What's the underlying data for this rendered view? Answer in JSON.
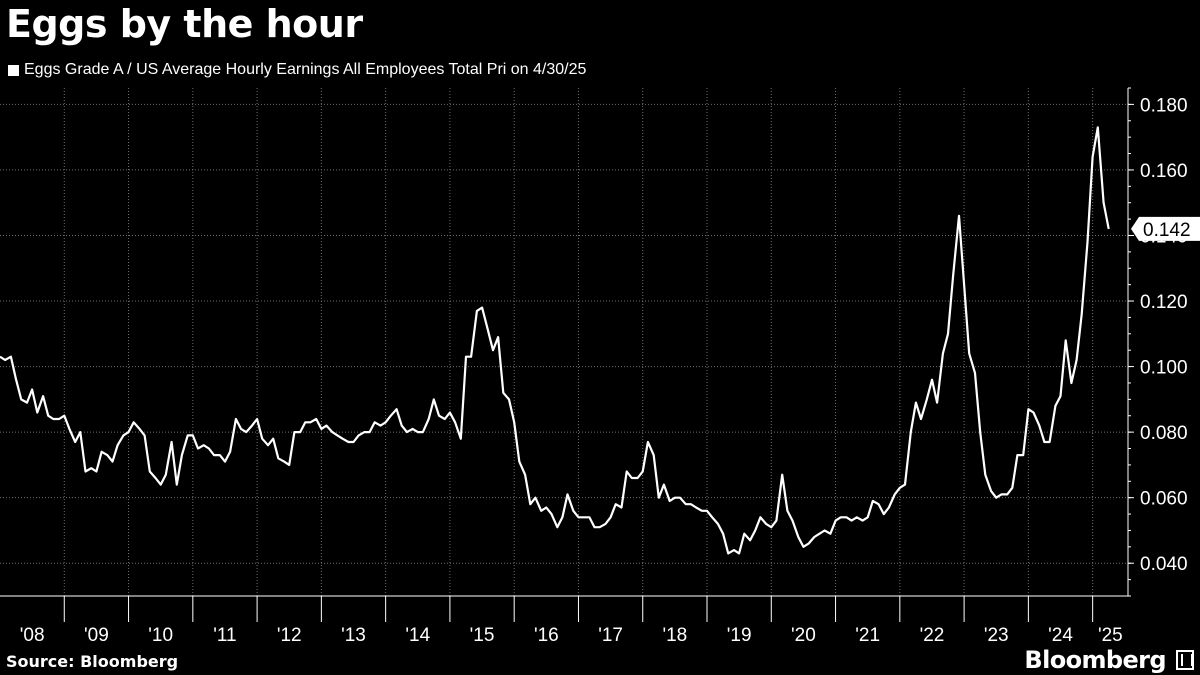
{
  "title": "Eggs by the hour",
  "legend": {
    "label": "Eggs Grade A / US Average Hourly Earnings All Employees Total Pri on 4/30/25"
  },
  "source": "Source: Bloomberg",
  "brand": "Bloomberg",
  "colors": {
    "background": "#000000",
    "line": "#ffffff",
    "grid": "#6e6e6e"
  },
  "chart_data": {
    "type": "line",
    "title": "Eggs by the hour",
    "xlabel": "",
    "ylabel": "",
    "ylim": [
      0.03,
      0.185
    ],
    "xlim": [
      2008.0,
      2025.55
    ],
    "y_ticks": [
      0.04,
      0.06,
      0.08,
      0.1,
      0.12,
      0.14,
      0.16,
      0.18
    ],
    "y_tick_labels": [
      "0.040",
      "0.060",
      "0.080",
      "0.100",
      "0.120",
      "0.140",
      "0.160",
      "0.180"
    ],
    "x_tick_labels": [
      "'08",
      "'09",
      "'10",
      "'11",
      "'12",
      "'13",
      "'14",
      "'15",
      "'16",
      "'17",
      "'18",
      "'19",
      "'20",
      "'21",
      "'22",
      "'23",
      "'24",
      "'25"
    ],
    "last_value_label": "0.142",
    "grid": true,
    "legend_position": "top-left",
    "series": [
      {
        "name": "Eggs Grade A / US Average Hourly Earnings All Employees Total Pri",
        "x": [
          2008.0,
          2008.08,
          2008.17,
          2008.25,
          2008.33,
          2008.42,
          2008.5,
          2008.58,
          2008.67,
          2008.75,
          2008.83,
          2008.92,
          2009.0,
          2009.08,
          2009.17,
          2009.25,
          2009.33,
          2009.42,
          2009.5,
          2009.58,
          2009.67,
          2009.75,
          2009.83,
          2009.92,
          2010.0,
          2010.08,
          2010.17,
          2010.25,
          2010.33,
          2010.42,
          2010.5,
          2010.58,
          2010.67,
          2010.75,
          2010.83,
          2010.92,
          2011.0,
          2011.08,
          2011.17,
          2011.25,
          2011.33,
          2011.42,
          2011.5,
          2011.58,
          2011.67,
          2011.75,
          2011.83,
          2011.92,
          2012.0,
          2012.08,
          2012.17,
          2012.25,
          2012.33,
          2012.42,
          2012.5,
          2012.58,
          2012.67,
          2012.75,
          2012.83,
          2012.92,
          2013.0,
          2013.08,
          2013.17,
          2013.25,
          2013.33,
          2013.42,
          2013.5,
          2013.58,
          2013.67,
          2013.75,
          2013.83,
          2013.92,
          2014.0,
          2014.08,
          2014.17,
          2014.25,
          2014.33,
          2014.42,
          2014.5,
          2014.58,
          2014.67,
          2014.75,
          2014.83,
          2014.92,
          2015.0,
          2015.08,
          2015.17,
          2015.25,
          2015.33,
          2015.42,
          2015.5,
          2015.58,
          2015.67,
          2015.75,
          2015.83,
          2015.92,
          2016.0,
          2016.08,
          2016.17,
          2016.25,
          2016.33,
          2016.42,
          2016.5,
          2016.58,
          2016.67,
          2016.75,
          2016.83,
          2016.92,
          2017.0,
          2017.08,
          2017.17,
          2017.25,
          2017.33,
          2017.42,
          2017.5,
          2017.58,
          2017.67,
          2017.75,
          2017.83,
          2017.92,
          2018.0,
          2018.08,
          2018.17,
          2018.25,
          2018.33,
          2018.42,
          2018.5,
          2018.58,
          2018.67,
          2018.75,
          2018.83,
          2018.92,
          2019.0,
          2019.08,
          2019.17,
          2019.25,
          2019.33,
          2019.42,
          2019.5,
          2019.58,
          2019.67,
          2019.75,
          2019.83,
          2019.92,
          2020.0,
          2020.08,
          2020.17,
          2020.25,
          2020.33,
          2020.42,
          2020.5,
          2020.58,
          2020.67,
          2020.75,
          2020.83,
          2020.92,
          2021.0,
          2021.08,
          2021.17,
          2021.25,
          2021.33,
          2021.42,
          2021.5,
          2021.58,
          2021.67,
          2021.75,
          2021.83,
          2021.92,
          2022.0,
          2022.08,
          2022.17,
          2022.25,
          2022.33,
          2022.42,
          2022.5,
          2022.58,
          2022.67,
          2022.75,
          2022.83,
          2022.92,
          2023.0,
          2023.08,
          2023.17,
          2023.25,
          2023.33,
          2023.42,
          2023.5,
          2023.58,
          2023.67,
          2023.75,
          2023.83,
          2023.92,
          2024.0,
          2024.08,
          2024.17,
          2024.25,
          2024.33,
          2024.42,
          2024.5,
          2024.58,
          2024.67,
          2024.75,
          2024.83,
          2024.92,
          2025.0,
          2025.08,
          2025.17,
          2025.25
        ],
        "values": [
          0.103,
          0.102,
          0.103,
          0.096,
          0.09,
          0.089,
          0.093,
          0.086,
          0.091,
          0.085,
          0.084,
          0.084,
          0.085,
          0.081,
          0.077,
          0.08,
          0.068,
          0.069,
          0.068,
          0.074,
          0.073,
          0.071,
          0.076,
          0.079,
          0.08,
          0.083,
          0.081,
          0.079,
          0.068,
          0.066,
          0.064,
          0.067,
          0.077,
          0.064,
          0.073,
          0.079,
          0.079,
          0.075,
          0.076,
          0.075,
          0.073,
          0.073,
          0.071,
          0.074,
          0.084,
          0.081,
          0.08,
          0.082,
          0.084,
          0.078,
          0.076,
          0.078,
          0.072,
          0.071,
          0.07,
          0.08,
          0.08,
          0.083,
          0.083,
          0.084,
          0.081,
          0.082,
          0.08,
          0.079,
          0.078,
          0.077,
          0.077,
          0.079,
          0.08,
          0.08,
          0.083,
          0.082,
          0.083,
          0.085,
          0.087,
          0.082,
          0.08,
          0.081,
          0.08,
          0.08,
          0.084,
          0.09,
          0.085,
          0.084,
          0.086,
          0.083,
          0.078,
          0.103,
          0.103,
          0.117,
          0.118,
          0.112,
          0.105,
          0.109,
          0.092,
          0.09,
          0.083,
          0.071,
          0.067,
          0.058,
          0.06,
          0.056,
          0.057,
          0.055,
          0.051,
          0.054,
          0.061,
          0.056,
          0.054,
          0.054,
          0.054,
          0.051,
          0.051,
          0.052,
          0.054,
          0.058,
          0.057,
          0.068,
          0.066,
          0.066,
          0.068,
          0.077,
          0.073,
          0.06,
          0.064,
          0.059,
          0.06,
          0.06,
          0.058,
          0.058,
          0.057,
          0.056,
          0.056,
          0.054,
          0.052,
          0.049,
          0.043,
          0.044,
          0.043,
          0.049,
          0.047,
          0.05,
          0.054,
          0.052,
          0.051,
          0.053,
          0.067,
          0.056,
          0.053,
          0.048,
          0.045,
          0.046,
          0.048,
          0.049,
          0.05,
          0.049,
          0.053,
          0.054,
          0.054,
          0.053,
          0.054,
          0.053,
          0.054,
          0.059,
          0.058,
          0.055,
          0.057,
          0.061,
          0.063,
          0.064,
          0.08,
          0.089,
          0.084,
          0.09,
          0.096,
          0.089,
          0.104,
          0.11,
          0.128,
          0.146,
          0.125,
          0.104,
          0.098,
          0.08,
          0.067,
          0.062,
          0.06,
          0.061,
          0.061,
          0.063,
          0.073,
          0.073,
          0.087,
          0.086,
          0.082,
          0.077,
          0.077,
          0.088,
          0.091,
          0.108,
          0.095,
          0.102,
          0.116,
          0.138,
          0.164,
          0.173,
          0.15,
          0.142
        ]
      }
    ]
  }
}
